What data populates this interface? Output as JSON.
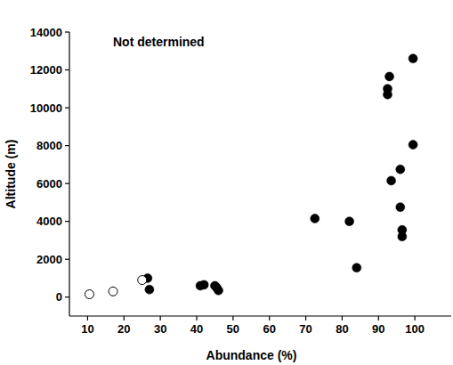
{
  "chart_data": {
    "type": "scatter",
    "annotation": "Not determined",
    "x_label": "Abundance (%)",
    "y_label": "Altitude (m)",
    "xlim": [
      5,
      110
    ],
    "ylim": [
      -1000,
      14000
    ],
    "xticks": [
      10,
      20,
      30,
      40,
      50,
      60,
      70,
      80,
      90,
      100
    ],
    "yticks": [
      0,
      2000,
      4000,
      6000,
      8000,
      10000,
      12000,
      14000
    ],
    "grid": false,
    "series": [
      {
        "marker": "circle",
        "color": "#000000",
        "x": [
          26.5,
          27,
          41,
          42,
          45,
          45.5,
          46,
          72.5,
          82,
          84,
          92.5,
          92.5,
          93,
          93.5,
          96,
          96,
          96.5,
          96.5,
          99.5,
          99.5
        ],
        "values": [
          1000,
          400,
          600,
          650,
          600,
          500,
          350,
          4150,
          4000,
          1550,
          10700,
          11000,
          11650,
          6150,
          6750,
          4750,
          3550,
          3200,
          12600,
          8050
        ]
      },
      {
        "marker": "open_circle",
        "color": "#000000",
        "x": [
          10.5,
          17,
          25
        ],
        "values": [
          150,
          300,
          900
        ]
      }
    ]
  }
}
